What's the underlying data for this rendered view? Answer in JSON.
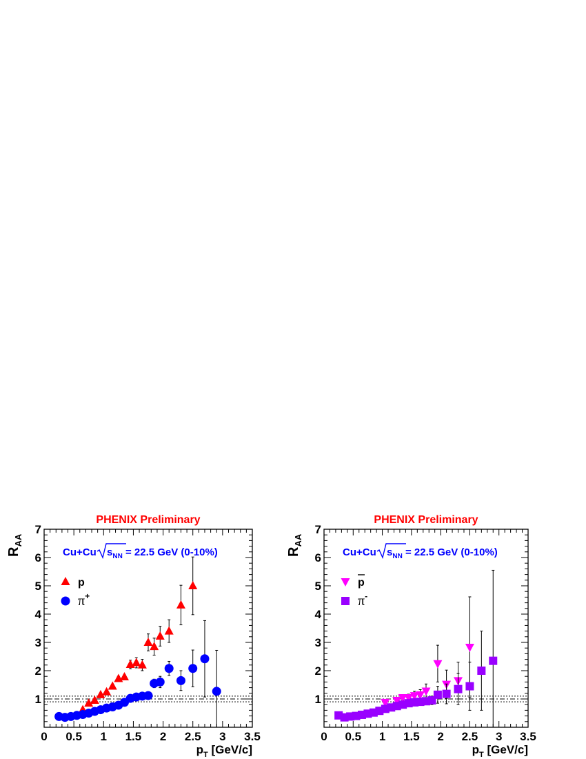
{
  "chart_data": [
    {
      "type": "scatter",
      "title": "PHENIX Preliminary",
      "annotation": {
        "prefix": "Cu+Cu",
        "sqrt_s": "s",
        "sqrt_sub": "NN",
        "suffix": "= 22.5 GeV (0-10%)"
      },
      "xlabel": {
        "main": "p",
        "sub": "T",
        "rest": " [GeV/c]"
      },
      "ylabel": {
        "main": "R",
        "sub": "AA"
      },
      "xlim": [
        0,
        3.5
      ],
      "ylim": [
        0,
        7
      ],
      "xticks": [
        "0",
        "0.5",
        "1",
        "1.5",
        "2",
        "2.5",
        "3",
        "3.5"
      ],
      "yticks": [
        "1",
        "2",
        "3",
        "4",
        "5",
        "6",
        "7"
      ],
      "reference_lines": [
        1.0,
        1.1,
        0.9
      ],
      "legend": {
        "position": "top-left"
      },
      "series": [
        {
          "name": "p",
          "sup": "",
          "bar": false,
          "marker": "triangle-up",
          "color": "#ff0000",
          "x": [
            0.65,
            0.75,
            0.85,
            0.95,
            1.05,
            1.15,
            1.25,
            1.35,
            1.45,
            1.55,
            1.65,
            1.75,
            1.85,
            1.95,
            2.1,
            2.3,
            2.5
          ],
          "y": [
            0.62,
            0.85,
            0.95,
            1.15,
            1.25,
            1.45,
            1.72,
            1.78,
            2.22,
            2.28,
            2.2,
            3.0,
            2.85,
            3.22,
            3.4,
            4.32,
            5.0
          ],
          "err": [
            0.05,
            0.05,
            0.05,
            0.06,
            0.06,
            0.07,
            0.08,
            0.08,
            0.15,
            0.18,
            0.2,
            0.3,
            0.3,
            0.35,
            0.4,
            0.7,
            1.02
          ]
        },
        {
          "name": "π",
          "sup": "+",
          "bar": false,
          "marker": "circle",
          "color": "#0000ff",
          "x": [
            0.25,
            0.35,
            0.45,
            0.55,
            0.65,
            0.75,
            0.85,
            0.95,
            1.05,
            1.15,
            1.25,
            1.35,
            1.45,
            1.55,
            1.65,
            1.75,
            1.85,
            1.95,
            2.1,
            2.3,
            2.5,
            2.7,
            2.9
          ],
          "y": [
            0.38,
            0.35,
            0.38,
            0.42,
            0.45,
            0.5,
            0.56,
            0.62,
            0.68,
            0.72,
            0.78,
            0.88,
            1.02,
            1.07,
            1.1,
            1.12,
            1.55,
            1.6,
            2.08,
            1.65,
            2.08,
            2.42,
            1.27
          ],
          "err": [
            0.02,
            0.02,
            0.02,
            0.02,
            0.02,
            0.03,
            0.03,
            0.03,
            0.03,
            0.03,
            0.03,
            0.04,
            0.05,
            0.06,
            0.07,
            0.08,
            0.15,
            0.2,
            0.25,
            0.35,
            0.65,
            1.35,
            1.45
          ]
        }
      ]
    },
    {
      "type": "scatter",
      "title": "PHENIX Preliminary",
      "annotation": {
        "prefix": "Cu+Cu",
        "sqrt_s": "s",
        "sqrt_sub": "NN",
        "suffix": "= 22.5 GeV (0-10%)"
      },
      "xlabel": {
        "main": "p",
        "sub": "T",
        "rest": " [GeV/c]"
      },
      "ylabel": {
        "main": "R",
        "sub": "AA"
      },
      "xlim": [
        0,
        3.5
      ],
      "ylim": [
        0,
        7
      ],
      "xticks": [
        "0",
        "0.5",
        "1",
        "1.5",
        "2",
        "2.5",
        "3",
        "3.5"
      ],
      "yticks": [
        "1",
        "2",
        "3",
        "4",
        "5",
        "6",
        "7"
      ],
      "reference_lines": [
        1.0,
        1.1,
        0.9
      ],
      "legend": {
        "position": "top-left"
      },
      "series": [
        {
          "name": "p",
          "sup": "",
          "bar": true,
          "marker": "triangle-down",
          "color": "#ff00ff",
          "x": [
            1.05,
            1.25,
            1.35,
            1.45,
            1.55,
            1.65,
            1.75,
            1.95,
            2.1,
            2.3,
            2.5
          ],
          "y": [
            0.88,
            0.95,
            1.05,
            1.05,
            1.12,
            1.15,
            1.28,
            2.25,
            1.52,
            1.65,
            2.83
          ],
          "err": [
            0.1,
            0.1,
            0.1,
            0.12,
            0.15,
            0.18,
            0.25,
            0.65,
            0.5,
            0.65,
            1.78
          ]
        },
        {
          "name": "π",
          "sup": "-",
          "bar": false,
          "marker": "square",
          "color": "#9900ff",
          "x": [
            0.25,
            0.35,
            0.45,
            0.55,
            0.65,
            0.75,
            0.85,
            0.95,
            1.05,
            1.15,
            1.25,
            1.35,
            1.45,
            1.55,
            1.65,
            1.75,
            1.85,
            1.95,
            2.1,
            2.3,
            2.5,
            2.7,
            2.9
          ],
          "y": [
            0.42,
            0.35,
            0.38,
            0.4,
            0.44,
            0.48,
            0.52,
            0.58,
            0.65,
            0.7,
            0.75,
            0.8,
            0.85,
            0.88,
            0.9,
            0.92,
            0.95,
            1.15,
            1.18,
            1.35,
            1.45,
            2.0,
            2.35
          ],
          "err": [
            0.03,
            0.03,
            0.03,
            0.03,
            0.03,
            0.03,
            0.04,
            0.04,
            0.04,
            0.05,
            0.05,
            0.05,
            0.06,
            0.07,
            0.08,
            0.1,
            0.15,
            0.3,
            0.35,
            0.55,
            0.85,
            1.4,
            3.2
          ]
        }
      ]
    }
  ]
}
